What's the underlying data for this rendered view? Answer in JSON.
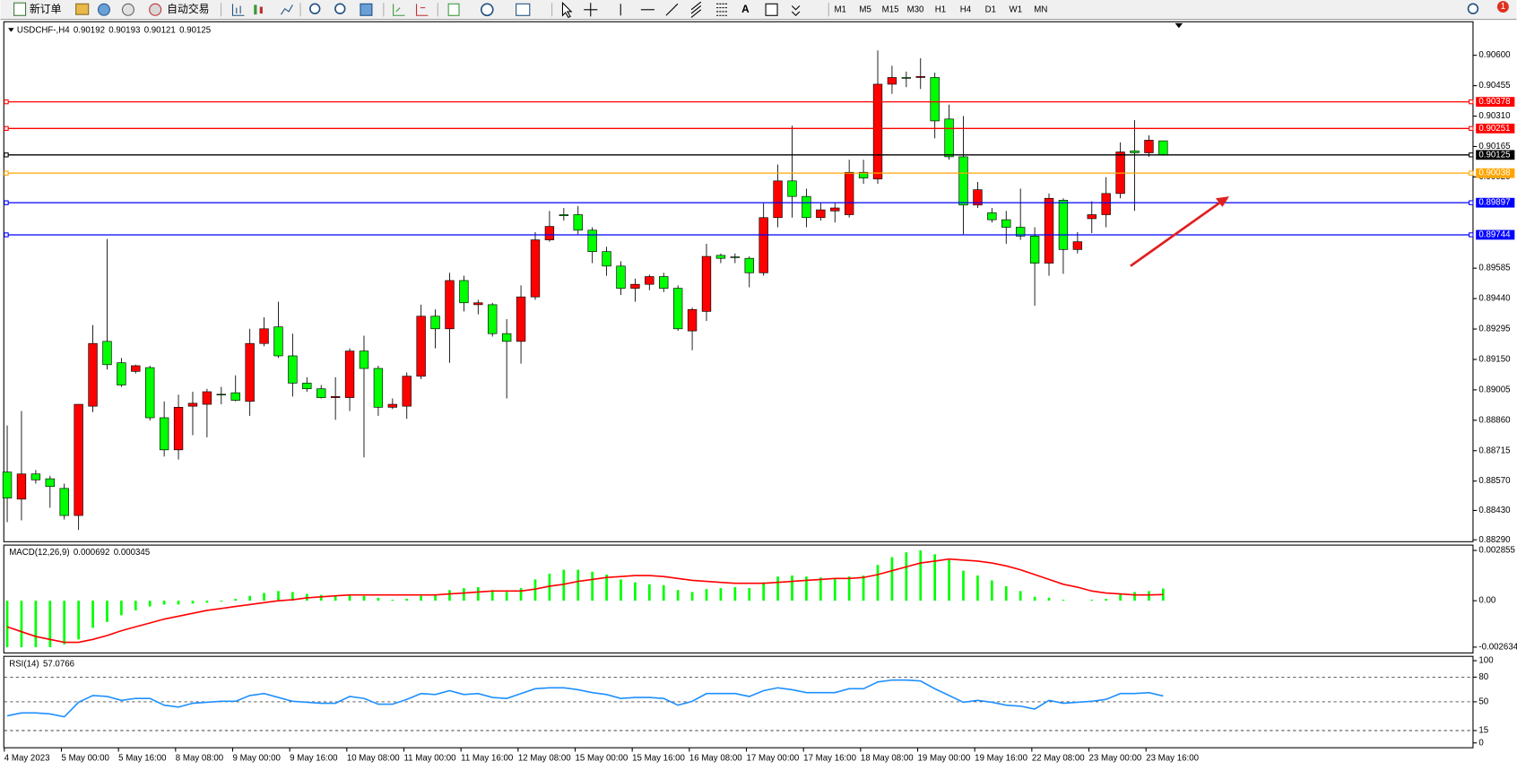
{
  "toolbar": {
    "new_order": "新订单",
    "auto_trading": "自动交易",
    "timeframes": [
      "M1",
      "M5",
      "M15",
      "M30",
      "H1",
      "H4",
      "D1",
      "W1",
      "MN"
    ],
    "notifications": 1
  },
  "chart_data": [
    {
      "type": "candlestick",
      "symbol": "USDCHF-,H4",
      "categories": [
        "4 May 2023",
        null,
        null,
        null,
        "5 May 00:00",
        null,
        null,
        null,
        "5 May 16:00",
        null,
        null,
        null,
        "8 May 08:00",
        null,
        null,
        null,
        "9 May 00:00",
        null,
        null,
        null,
        "9 May 16:00",
        null,
        null,
        null,
        "10 May 08:00",
        null,
        null,
        null,
        "11 May 00:00",
        null,
        null,
        null,
        "11 May 16:00",
        null,
        null,
        null,
        "12 May 08:00",
        null,
        null,
        null,
        "15 May 00:00",
        null,
        null,
        null,
        "15 May 16:00",
        null,
        null,
        null,
        "16 May 08:00",
        null,
        null,
        null,
        "17 May 00:00",
        null,
        null,
        null,
        "17 May 16:00",
        null,
        null,
        null,
        "18 May 08:00",
        null,
        null,
        null,
        "19 May 00:00",
        null,
        null,
        null,
        "19 May 16:00",
        null,
        null,
        null,
        "22 May 08:00",
        null,
        null,
        null,
        "23 May 00:00",
        null,
        null,
        null,
        "23 May 16:00",
        null
      ],
      "open": [
        0.88613,
        0.88484,
        0.88604,
        0.88581,
        0.88535,
        0.88406,
        0.88927,
        0.89236,
        0.89134,
        0.89093,
        0.89111,
        0.88872,
        0.88719,
        0.88927,
        0.88936,
        0.88984,
        0.88991,
        0.8895,
        0.89226,
        0.89305,
        0.89167,
        0.89037,
        0.8901,
        0.88968,
        0.88968,
        0.8919,
        0.89107,
        0.88922,
        0.88927,
        0.8907,
        0.89356,
        0.89296,
        0.89526,
        0.89411,
        0.89411,
        0.89273,
        0.89236,
        0.89448,
        0.8972,
        0.8984,
        0.8984,
        0.89766,
        0.89664,
        0.89595,
        0.89489,
        0.89508,
        0.89545,
        0.89489,
        0.89286,
        0.89379,
        0.89646,
        0.89639,
        0.89632,
        0.89563,
        0.89826,
        0.90001,
        0.89927,
        0.89826,
        0.89858,
        0.8984,
        0.90042,
        0.9001,
        0.90462,
        0.90494,
        0.90494,
        0.90494,
        0.90296,
        0.90116,
        0.89886,
        0.89849,
        0.89816,
        0.8978,
        0.89738,
        0.89609,
        0.89909,
        0.89674,
        0.89821,
        0.8984,
        0.89941,
        0.90144,
        0.90135,
        0.90192
      ],
      "high": [
        0.88835,
        0.88904,
        0.88623,
        0.88595,
        0.88558,
        0.88936,
        0.89314,
        0.89724,
        0.89157,
        0.89125,
        0.8912,
        0.8895,
        0.88982,
        0.88996,
        0.8901,
        0.89019,
        0.89074,
        0.89296,
        0.89351,
        0.89425,
        0.89273,
        0.89065,
        0.89028,
        0.89065,
        0.89203,
        0.89263,
        0.8912,
        0.88964,
        0.89088,
        0.89411,
        0.89388,
        0.89563,
        0.89549,
        0.89434,
        0.8942,
        0.89342,
        0.89503,
        0.89757,
        0.89858,
        0.89872,
        0.89881,
        0.8978,
        0.89687,
        0.89618,
        0.89535,
        0.89554,
        0.89563,
        0.89503,
        0.89397,
        0.89701,
        0.89655,
        0.89655,
        0.89641,
        0.89895,
        0.90079,
        0.90264,
        0.89964,
        0.89895,
        0.89895,
        0.90102,
        0.90102,
        0.90623,
        0.9055,
        0.90522,
        0.90586,
        0.90517,
        0.90365,
        0.9031,
        0.89996,
        0.89872,
        0.89858,
        0.89964,
        0.8978,
        0.89941,
        0.89918,
        0.89757,
        0.89904,
        0.90019,
        0.90185,
        0.90291,
        0.90218,
        0.90193
      ],
      "low": [
        0.88374,
        0.88383,
        0.88558,
        0.88443,
        0.88387,
        0.88337,
        0.88899,
        0.89102,
        0.89019,
        0.89083,
        0.88858,
        0.88687,
        0.88673,
        0.88789,
        0.88779,
        0.88936,
        0.8895,
        0.88881,
        0.89213,
        0.89157,
        0.88973,
        0.88996,
        0.88964,
        0.88862,
        0.88904,
        0.88683,
        0.88881,
        0.88913,
        0.88867,
        0.89056,
        0.89203,
        0.89134,
        0.89379,
        0.89365,
        0.89259,
        0.88964,
        0.8913,
        0.89434,
        0.89711,
        0.89812,
        0.89747,
        0.89609,
        0.89549,
        0.89457,
        0.89425,
        0.8948,
        0.89471,
        0.89286,
        0.89194,
        0.89333,
        0.89609,
        0.89609,
        0.89494,
        0.89549,
        0.8978,
        0.89826,
        0.8978,
        0.89812,
        0.89803,
        0.89826,
        0.89987,
        0.89987,
        0.90416,
        0.90448,
        0.90439,
        0.90204,
        0.90102,
        0.89747,
        0.89872,
        0.89803,
        0.89701,
        0.8972,
        0.89406,
        0.89549,
        0.89558,
        0.89655,
        0.89752,
        0.8978,
        0.89918,
        0.89858,
        0.90116,
        0.90121
      ],
      "close": [
        0.88489,
        0.88604,
        0.88576,
        0.88544,
        0.88406,
        0.88936,
        0.89226,
        0.89125,
        0.89028,
        0.8912,
        0.88872,
        0.88719,
        0.88922,
        0.88941,
        0.88996,
        0.88982,
        0.88955,
        0.89226,
        0.89296,
        0.89167,
        0.89037,
        0.8901,
        0.88968,
        0.88973,
        0.8919,
        0.89107,
        0.88922,
        0.88936,
        0.8907,
        0.89356,
        0.89296,
        0.89526,
        0.8942,
        0.8942,
        0.89273,
        0.89236,
        0.89448,
        0.8972,
        0.89784,
        0.89835,
        0.89766,
        0.89664,
        0.89595,
        0.89489,
        0.89508,
        0.89545,
        0.89489,
        0.89296,
        0.89388,
        0.89641,
        0.89632,
        0.89637,
        0.89563,
        0.89826,
        0.90001,
        0.89927,
        0.89826,
        0.89863,
        0.89872,
        0.90042,
        0.90015,
        0.90462,
        0.90494,
        0.9049,
        0.90499,
        0.90287,
        0.90116,
        0.89886,
        0.89959,
        0.89816,
        0.8978,
        0.89738,
        0.89609,
        0.89918,
        0.89674,
        0.89711,
        0.8984,
        0.89941,
        0.90139,
        0.90135,
        0.90195,
        0.90125
      ],
      "up_color": "#ff0000",
      "down_color": "#00ff00",
      "ylim": [
        0.88281,
        0.90762
      ],
      "yticks": [
        {
          "value": 0.906,
          "label": "0.90600"
        },
        0.90455,
        {
          "value": 0.9031,
          "label": "0.90310"
        },
        0.90165,
        {
          "value": 0.9002,
          "label": "0.90020"
        },
        0.89585,
        {
          "value": 0.8944,
          "label": "0.89440"
        },
        0.89295,
        {
          "value": 0.8915,
          "label": "0.89150"
        },
        0.89005,
        {
          "value": 0.8886,
          "label": "0.88860"
        },
        0.88715,
        {
          "value": 0.8857,
          "label": "0.88570"
        },
        {
          "value": 0.8843,
          "label": "0.88430"
        },
        {
          "value": 0.8829,
          "label": "0.88290"
        }
      ],
      "lines": [
        {
          "value": 0.90378,
          "color": "#ff0000"
        },
        {
          "value": 0.90251,
          "color": "#ff0000"
        },
        {
          "value": 0.90125,
          "color": "#000000"
        },
        {
          "value": 0.90038,
          "color": "#ffa500"
        },
        {
          "value": 0.89897,
          "color": "#0000ff"
        },
        {
          "value": 0.89744,
          "color": "#0000ff"
        }
      ]
    },
    {
      "type": "macd",
      "label": "MACD(12,26,9)",
      "color": "#00ff00",
      "signal_color": "#ff0000",
      "values": [
        -0.002635,
        -0.002635,
        -0.002635,
        -0.002635,
        -0.002471,
        -0.002196,
        -0.001537,
        -0.001208,
        -0.000824,
        -0.000549,
        -0.000329,
        -0.00022,
        -0.00022,
        -0.000165,
        -0.00011,
        -5.5e-05,
        0.00011,
        0.000275,
        0.000439,
        0.000549,
        0.000494,
        0.000384,
        0.000329,
        0.000275,
        0.000329,
        0.000275,
        0.000165,
        5.5e-05,
        0.00011,
        0.000275,
        0.000329,
        0.000604,
        0.000714,
        0.000769,
        0.000604,
        0.000494,
        0.000714,
        0.001208,
        0.001537,
        0.001757,
        0.001757,
        0.001647,
        0.001482,
        0.001208,
        0.001043,
        0.000933,
        0.000878,
        0.000604,
        0.000494,
        0.000659,
        0.000714,
        0.000769,
        0.000714,
        0.001043,
        0.001373,
        0.001427,
        0.001373,
        0.001318,
        0.001263,
        0.001373,
        0.001427,
        0.002031,
        0.002471,
        0.002745,
        0.002855,
        0.002635,
        0.002306,
        0.001702,
        0.001427,
        0.001153,
        0.000824,
        0.000549,
        0.00022,
        0.000165,
        5.5e-05,
        0,
        5.5e-05,
        0.00011,
        0.000384,
        0.000494,
        0.000549,
        0.000692
      ],
      "signal": [
        -0.001482,
        -0.001757,
        -0.002031,
        -0.002196,
        -0.002361,
        -0.002361,
        -0.002196,
        -0.001976,
        -0.001702,
        -0.001482,
        -0.001263,
        -0.001043,
        -0.000878,
        -0.000714,
        -0.000549,
        -0.000439,
        -0.000329,
        -0.00022,
        -0.00011,
        0,
        5.5e-05,
        0.000165,
        0.00022,
        0.000275,
        0.000329,
        0.000329,
        0.000329,
        0.000329,
        0.000329,
        0.000329,
        0.000329,
        0.000384,
        0.000439,
        0.000494,
        0.000549,
        0.000549,
        0.000549,
        0.000659,
        0.000824,
        0.000933,
        0.001098,
        0.001208,
        0.001318,
        0.001373,
        0.001427,
        0.001427,
        0.001373,
        0.001263,
        0.001153,
        0.001098,
        0.001043,
        0.000988,
        0.000988,
        0.000988,
        0.001043,
        0.001098,
        0.001153,
        0.001208,
        0.001263,
        0.001263,
        0.001318,
        0.001482,
        0.001702,
        0.001922,
        0.002141,
        0.002251,
        0.002361,
        0.002306,
        0.002251,
        0.002141,
        0.001976,
        0.001757,
        0.001482,
        0.001208,
        0.000933,
        0.000769,
        0.000549,
        0.000439,
        0.000384,
        0.000329,
        0.000329,
        0.000345
      ],
      "ylim": [
        -0.002965,
        0.003184
      ],
      "yticks": [
        0.002855,
        {
          "value": 0,
          "label": "0.00"
        },
        -0.002634
      ]
    },
    {
      "type": "line",
      "label": "RSI(14)",
      "color": "#1e90ff",
      "values": [
        32.94,
        36.47,
        36.47,
        35.29,
        31.76,
        49.41,
        57.65,
        56.47,
        51.76,
        54.12,
        54.12,
        45.88,
        43.53,
        48.24,
        49.41,
        50.59,
        50.59,
        57.65,
        60.0,
        55.29,
        50.59,
        49.41,
        48.24,
        48.24,
        56.47,
        54.12,
        47.06,
        47.06,
        52.94,
        60.0,
        58.82,
        63.53,
        58.82,
        60.0,
        55.29,
        54.12,
        60.0,
        65.88,
        67.06,
        67.06,
        64.71,
        61.18,
        58.82,
        54.12,
        55.29,
        55.29,
        54.12,
        45.88,
        50.59,
        60.0,
        60.0,
        60.0,
        56.47,
        63.53,
        67.06,
        64.71,
        61.18,
        61.18,
        61.18,
        65.88,
        65.88,
        74.12,
        76.47,
        76.47,
        75.29,
        65.88,
        57.65,
        49.41,
        51.76,
        49.41,
        45.88,
        44.71,
        41.18,
        51.76,
        48.24,
        49.41,
        50.59,
        52.94,
        60.0,
        60.0,
        61.18,
        57.0766
      ],
      "ylim": [
        -5.9,
        104.7
      ],
      "yticks": [
        100,
        80,
        50,
        15,
        0
      ]
    }
  ]
}
